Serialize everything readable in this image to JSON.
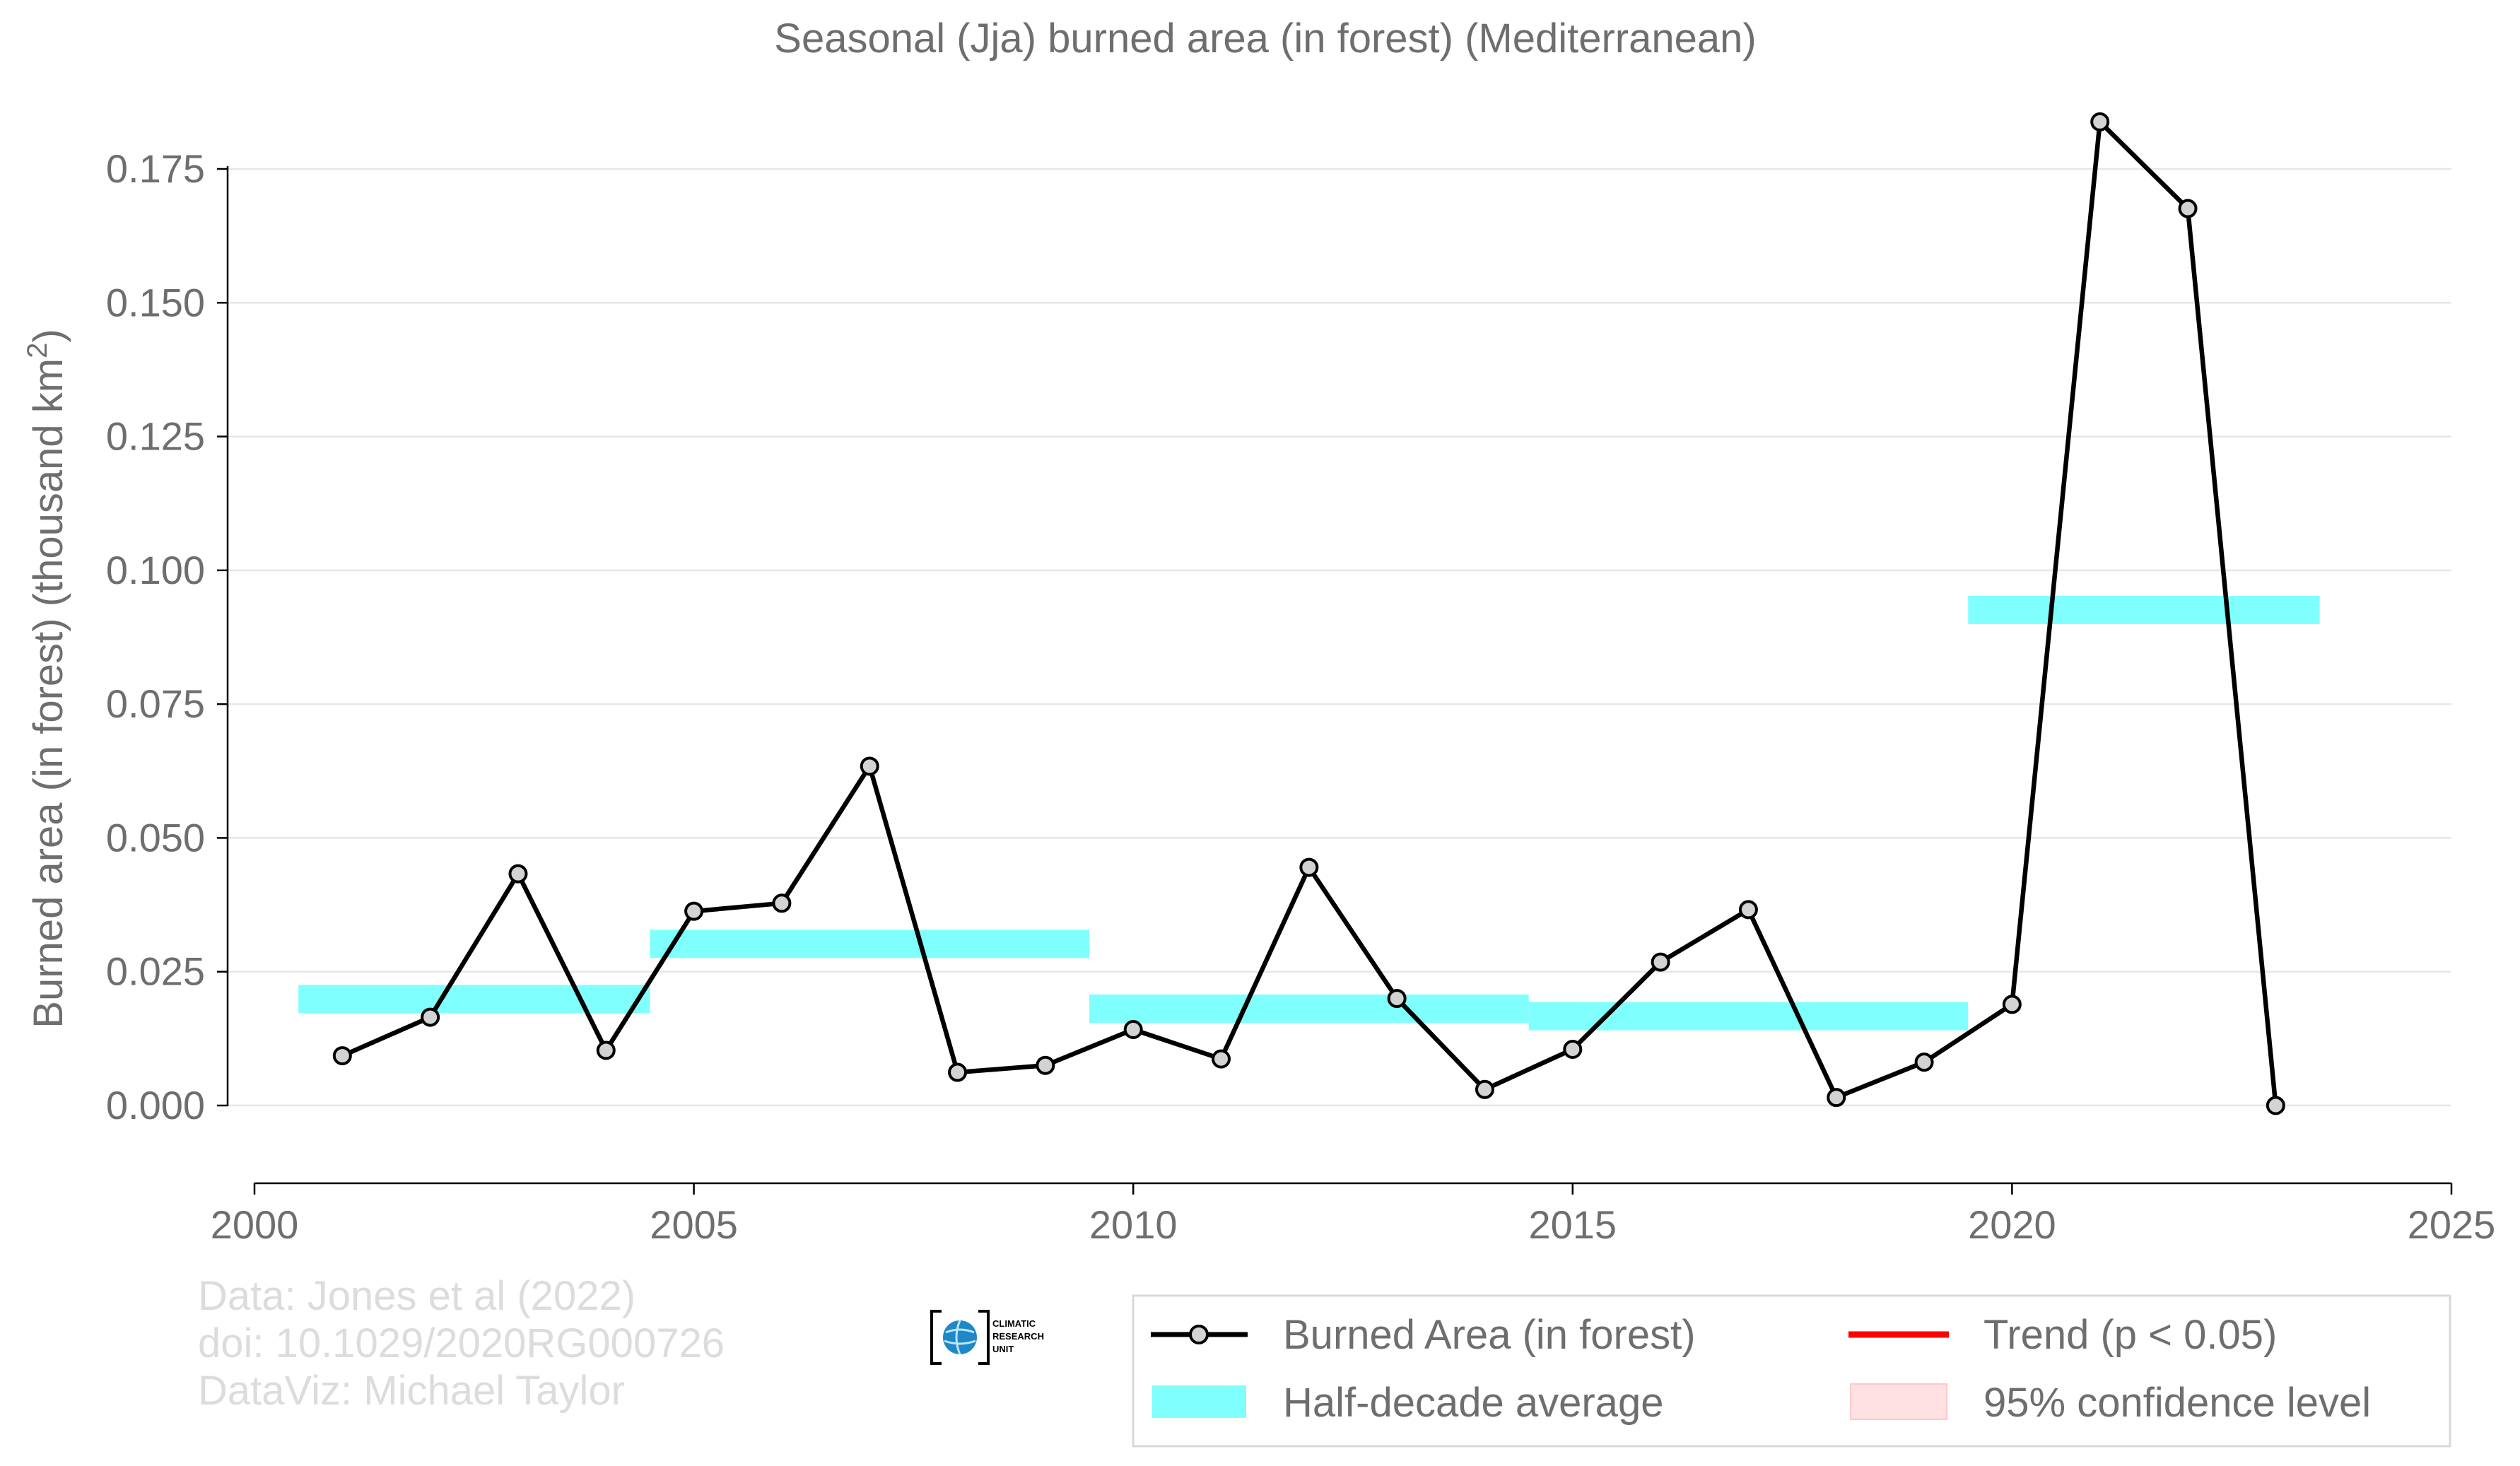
{
  "chart_data": {
    "type": "line",
    "title": "Seasonal (Jja) burned area (in forest) (Mediterranean)",
    "ylabel": "Burned area (in forest) (thousand km",
    "ylabel_sup": "2",
    "ylabel_suffix": ")",
    "xlabel": "",
    "xlim": [
      2000,
      2025
    ],
    "ylim": [
      -0.0135,
      0.19
    ],
    "x_ticks": [
      2000,
      2005,
      2010,
      2015,
      2020,
      2025
    ],
    "y_ticks": [
      0.0,
      0.025,
      0.05,
      0.075,
      0.1,
      0.125,
      0.15,
      0.175
    ],
    "y_tick_labels": [
      "0.000",
      "0.025",
      "0.050",
      "0.075",
      "0.100",
      "0.125",
      "0.150",
      "0.175"
    ],
    "x_tick_labels": [
      "2000",
      "2005",
      "2010",
      "2015",
      "2020",
      "2025"
    ],
    "grid": "horizontal",
    "legend_position": "bottom-right",
    "series": [
      {
        "name": "Burned Area (in forest)",
        "color": "#000000",
        "marker_fill": "#d3d3d3",
        "x": [
          2001,
          2002,
          2003,
          2004,
          2005,
          2006,
          2007,
          2008,
          2009,
          2010,
          2011,
          2012,
          2013,
          2014,
          2015,
          2016,
          2017,
          2018,
          2019,
          2020,
          2021,
          2022,
          2023
        ],
        "y": [
          0.0093,
          0.0165,
          0.0433,
          0.0103,
          0.0363,
          0.0378,
          0.0634,
          0.0062,
          0.0075,
          0.0142,
          0.0087,
          0.0445,
          0.02,
          0.003,
          0.0105,
          0.0268,
          0.0366,
          0.0015,
          0.0081,
          0.0189,
          0.1838,
          0.1676,
          0.0
        ]
      }
    ],
    "half_decade_average": {
      "name": "Half-decade average",
      "color": "#80ffff",
      "segments": [
        {
          "x0": 2000.5,
          "x1": 2004.5,
          "y": 0.0199
        },
        {
          "x0": 2004.5,
          "x1": 2009.5,
          "y": 0.0302
        },
        {
          "x0": 2009.5,
          "x1": 2014.5,
          "y": 0.0181
        },
        {
          "x0": 2014.5,
          "x1": 2019.5,
          "y": 0.0167
        },
        {
          "x0": 2019.5,
          "x1": 2023.5,
          "y": 0.0926
        }
      ]
    },
    "trend": {
      "name": "Trend (p < 0.05)",
      "color": "#ff0000"
    },
    "confidence": {
      "name": "95% confidence level",
      "color": "#ffe0e3"
    }
  },
  "credits": [
    "Data: Jones et al (2022)",
    "doi: 10.1029/2020RG000726",
    "DataViz: Michael Taylor"
  ],
  "logo": {
    "lines": [
      "CLIMATIC",
      "RESEARCH",
      "UNIT"
    ],
    "color": "#1e88c8"
  }
}
